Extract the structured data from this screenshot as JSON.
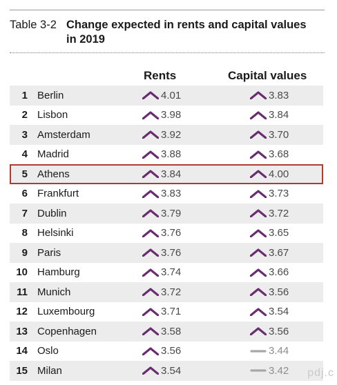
{
  "table_label": "Table 3-2",
  "title_line1": "Change expected in rents and capital values",
  "title_line2": "in 2019",
  "columns": {
    "rents": "Rents",
    "capital": "Capital values"
  },
  "colors": {
    "up_arrow": "#6a2c70",
    "flat_dash": "#a8a8a8",
    "highlight_border": "#b03a2e"
  },
  "highlighted_rank": "5",
  "rows": [
    {
      "rank": "1",
      "city": "Berlin",
      "rent": "4.01",
      "rent_trend": "up",
      "capital": "3.83",
      "capital_trend": "up"
    },
    {
      "rank": "2",
      "city": "Lisbon",
      "rent": "3.98",
      "rent_trend": "up",
      "capital": "3.84",
      "capital_trend": "up"
    },
    {
      "rank": "3",
      "city": "Amsterdam",
      "rent": "3.92",
      "rent_trend": "up",
      "capital": "3.70",
      "capital_trend": "up"
    },
    {
      "rank": "4",
      "city": "Madrid",
      "rent": "3.88",
      "rent_trend": "up",
      "capital": "3.68",
      "capital_trend": "up"
    },
    {
      "rank": "5",
      "city": "Athens",
      "rent": "3.84",
      "rent_trend": "up",
      "capital": "4.00",
      "capital_trend": "up"
    },
    {
      "rank": "6",
      "city": "Frankfurt",
      "rent": "3.83",
      "rent_trend": "up",
      "capital": "3.73",
      "capital_trend": "up"
    },
    {
      "rank": "7",
      "city": "Dublin",
      "rent": "3.79",
      "rent_trend": "up",
      "capital": "3.72",
      "capital_trend": "up"
    },
    {
      "rank": "8",
      "city": "Helsinki",
      "rent": "3.76",
      "rent_trend": "up",
      "capital": "3.65",
      "capital_trend": "up"
    },
    {
      "rank": "9",
      "city": "Paris",
      "rent": "3.76",
      "rent_trend": "up",
      "capital": "3.67",
      "capital_trend": "up"
    },
    {
      "rank": "10",
      "city": "Hamburg",
      "rent": "3.74",
      "rent_trend": "up",
      "capital": "3.66",
      "capital_trend": "up"
    },
    {
      "rank": "11",
      "city": "Munich",
      "rent": "3.72",
      "rent_trend": "up",
      "capital": "3.56",
      "capital_trend": "up"
    },
    {
      "rank": "12",
      "city": "Luxembourg",
      "rent": "3.71",
      "rent_trend": "up",
      "capital": "3.54",
      "capital_trend": "up"
    },
    {
      "rank": "13",
      "city": "Copenhagen",
      "rent": "3.58",
      "rent_trend": "up",
      "capital": "3.56",
      "capital_trend": "up"
    },
    {
      "rank": "14",
      "city": "Oslo",
      "rent": "3.56",
      "rent_trend": "up",
      "capital": "3.44",
      "capital_trend": "flat"
    },
    {
      "rank": "15",
      "city": "Milan",
      "rent": "3.54",
      "rent_trend": "up",
      "capital": "3.42",
      "capital_trend": "flat"
    }
  ],
  "watermark": "pdj.c"
}
